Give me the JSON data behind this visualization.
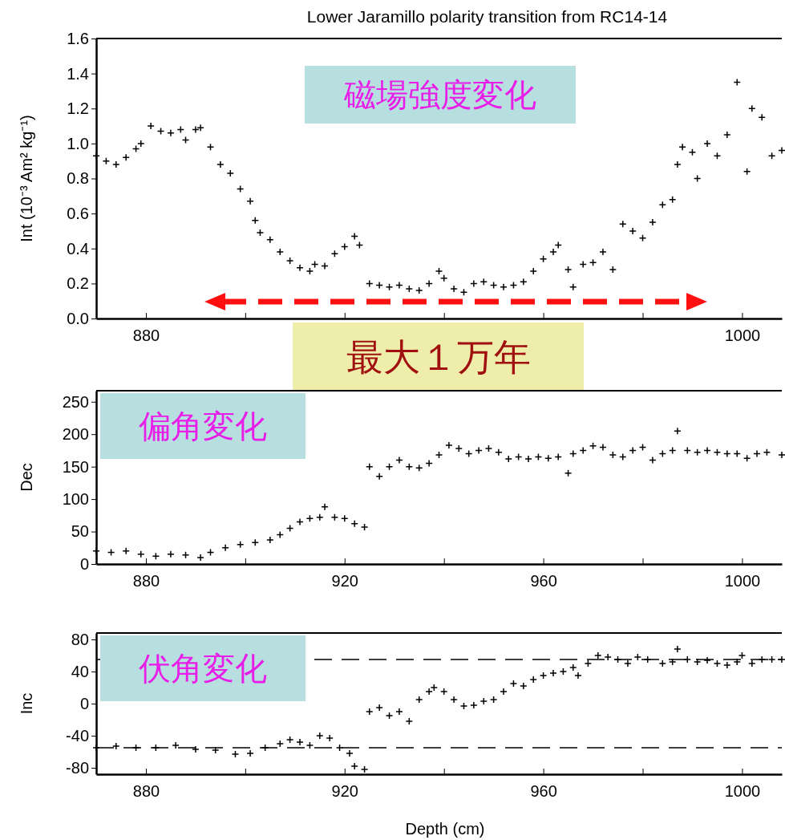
{
  "chart_data": [
    {
      "type": "scatter",
      "title": "Lower Jaramillo polarity transition from RC14-14",
      "ylabel": "Int (10⁻³ Am² kg⁻¹)",
      "marker": "cross",
      "annotations": [
        "磁場強度変化",
        "最大１万年"
      ],
      "xlim": [
        870,
        1008
      ],
      "xticks": [
        880,
        {
          "value": 900,
          "label": null
        },
        {
          "value": 920,
          "label": null
        },
        {
          "value": 940,
          "label": null
        },
        {
          "value": 960,
          "label": null
        },
        {
          "value": 980,
          "label": null
        },
        1000
      ],
      "ylim": [
        0,
        1.6
      ],
      "yticks": [
        {
          "value": 0,
          "label": "0.0"
        },
        0.2,
        0.4,
        0.6,
        0.8,
        {
          "value": 1,
          "label": "1.0"
        },
        1.2,
        1.4,
        1.6
      ],
      "series": [
        {
          "color": "#000000",
          "x": [
            870,
            872,
            874,
            876,
            878,
            879,
            881,
            883,
            885,
            887,
            888,
            890,
            891,
            893,
            895,
            897,
            899,
            901,
            902,
            903,
            905,
            907,
            909,
            911,
            913,
            914,
            916,
            918,
            920,
            922,
            923,
            925,
            927,
            929,
            931,
            933,
            935,
            937,
            939,
            940,
            942,
            944,
            946,
            948,
            950,
            952,
            954,
            956,
            958,
            960,
            962,
            963,
            965,
            966,
            968,
            970,
            972,
            974,
            976,
            978,
            980,
            982,
            984,
            986,
            987,
            988,
            990,
            991,
            993,
            995,
            997,
            999,
            1001,
            1002,
            1004,
            1006,
            1008
          ],
          "values": [
            0.93,
            0.9,
            0.88,
            0.92,
            0.97,
            1,
            1.1,
            1.07,
            1.06,
            1.08,
            1.02,
            1.08,
            1.09,
            0.98,
            0.88,
            0.83,
            0.74,
            0.67,
            0.56,
            0.49,
            0.45,
            0.38,
            0.33,
            0.29,
            0.27,
            0.31,
            0.3,
            0.37,
            0.41,
            0.47,
            0.42,
            0.2,
            0.19,
            0.18,
            0.19,
            0.17,
            0.16,
            0.2,
            0.27,
            0.23,
            0.17,
            0.15,
            0.2,
            0.21,
            0.19,
            0.18,
            0.19,
            0.21,
            0.27,
            0.34,
            0.38,
            0.42,
            0.28,
            0.18,
            0.31,
            0.32,
            0.38,
            0.28,
            0.54,
            0.5,
            0.46,
            0.55,
            0.65,
            0.68,
            0.88,
            0.98,
            0.95,
            0.8,
            1,
            0.93,
            1.05,
            1.35,
            0.84,
            1.2,
            1.15,
            0.93,
            0.96
          ]
        }
      ]
    },
    {
      "type": "scatter",
      "ylabel": "Dec",
      "marker": "cross",
      "annotations": [
        "偏角変化"
      ],
      "xlim": [
        870,
        1008
      ],
      "xticks": [
        880,
        {
          "value": 900,
          "label": null
        },
        920,
        {
          "value": 940,
          "label": null
        },
        960,
        {
          "value": 980,
          "label": null
        },
        1000
      ],
      "ylim": [
        0,
        267
      ],
      "yticks": [
        0,
        50,
        100,
        150,
        200,
        250
      ],
      "series": [
        {
          "color": "#000000",
          "x": [
            870,
            873,
            876,
            879,
            882,
            885,
            888,
            891,
            893,
            896,
            899,
            902,
            905,
            907,
            909,
            911,
            913,
            915,
            916,
            918,
            920,
            922,
            924,
            925,
            927,
            929,
            931,
            933,
            935,
            937,
            939,
            941,
            943,
            945,
            947,
            949,
            951,
            953,
            955,
            957,
            959,
            961,
            963,
            965,
            966,
            968,
            970,
            972,
            974,
            976,
            978,
            980,
            982,
            984,
            986,
            987,
            989,
            991,
            993,
            995,
            997,
            999,
            1001,
            1003,
            1005,
            1008
          ],
          "values": [
            20,
            18,
            20,
            15,
            12,
            15,
            14,
            10,
            18,
            25,
            30,
            33,
            37,
            45,
            55,
            65,
            70,
            72,
            88,
            72,
            70,
            62,
            57,
            150,
            135,
            150,
            160,
            150,
            148,
            155,
            168,
            183,
            178,
            170,
            175,
            178,
            172,
            162,
            165,
            162,
            165,
            163,
            165,
            140,
            170,
            175,
            182,
            180,
            168,
            165,
            175,
            180,
            160,
            170,
            175,
            205,
            175,
            172,
            175,
            172,
            170,
            170,
            163,
            170,
            172,
            168
          ]
        }
      ]
    },
    {
      "type": "scatter",
      "ylabel": "Inc",
      "xlabel": "Depth (cm)",
      "marker": "cross",
      "annotations": [
        "伏角変化"
      ],
      "xlim": [
        870,
        1008
      ],
      "xticks": [
        880,
        {
          "value": 900,
          "label": null
        },
        920,
        {
          "value": 940,
          "label": null
        },
        960,
        {
          "value": 980,
          "label": null
        },
        1000
      ],
      "ylim": [
        -88,
        88
      ],
      "yticks": [
        -80,
        -40,
        0,
        40,
        80
      ],
      "ref_lines": [
        {
          "axis": "y",
          "value": 55,
          "line_style": "dashed"
        },
        {
          "axis": "y",
          "value": -55,
          "line_style": "dashed"
        }
      ],
      "series": [
        {
          "color": "#000000",
          "x": [
            870,
            874,
            878,
            882,
            886,
            890,
            894,
            898,
            901,
            904,
            907,
            909,
            911,
            913,
            915,
            917,
            919,
            921,
            922,
            924,
            925,
            927,
            929,
            931,
            933,
            935,
            937,
            938,
            940,
            942,
            944,
            946,
            948,
            950,
            952,
            954,
            956,
            958,
            960,
            962,
            964,
            966,
            967,
            969,
            971,
            973,
            975,
            977,
            979,
            981,
            984,
            986,
            987,
            989,
            991,
            993,
            995,
            997,
            999,
            1000,
            1002,
            1004,
            1006,
            1008
          ],
          "values": [
            -55,
            -53,
            -55,
            -55,
            -52,
            -57,
            -58,
            -63,
            -62,
            -55,
            -50,
            -45,
            -48,
            -52,
            -40,
            -43,
            -55,
            -62,
            -78,
            -82,
            -10,
            -5,
            -15,
            -10,
            -22,
            5,
            15,
            20,
            15,
            5,
            -3,
            -2,
            3,
            5,
            15,
            25,
            22,
            30,
            35,
            38,
            40,
            45,
            35,
            50,
            60,
            58,
            55,
            50,
            58,
            55,
            50,
            52,
            68,
            55,
            52,
            54,
            50,
            48,
            52,
            60,
            50,
            55,
            55,
            55
          ]
        }
      ]
    }
  ]
}
